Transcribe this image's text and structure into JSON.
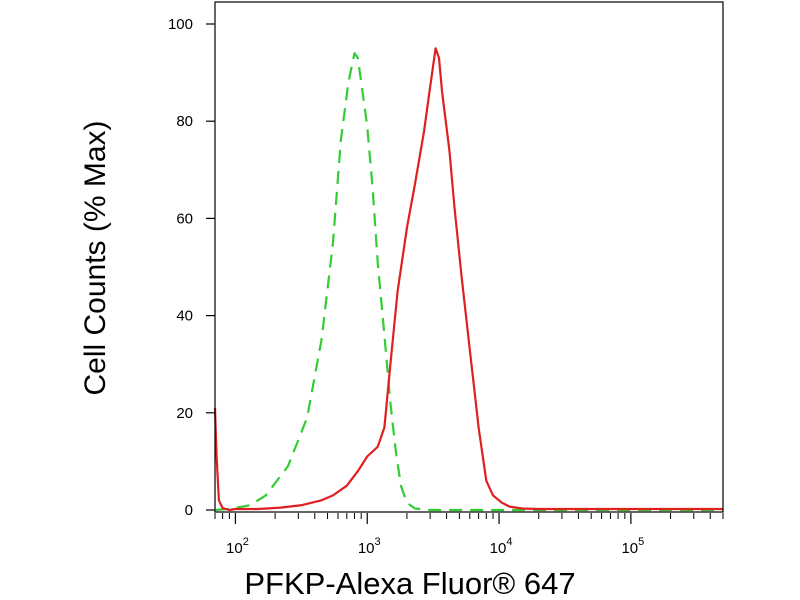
{
  "chart_data": {
    "type": "line",
    "title": "",
    "xlabel": "PFKP-Alexa Fluor® 647",
    "ylabel": "Cell Counts (% Max)",
    "x_scale": "log",
    "xlim": [
      70,
      500000
    ],
    "ylim": [
      0,
      100
    ],
    "grid": false,
    "legend": "none",
    "x_ticks": [
      {
        "value": 100,
        "base": "10",
        "exp": "2"
      },
      {
        "value": 1000,
        "base": "10",
        "exp": "3"
      },
      {
        "value": 10000,
        "base": "10",
        "exp": "4"
      },
      {
        "value": 100000,
        "base": "10",
        "exp": "5"
      }
    ],
    "y_ticks": [
      {
        "value": 0,
        "label": "0"
      },
      {
        "value": 20,
        "label": "20"
      },
      {
        "value": 40,
        "label": "40"
      },
      {
        "value": 60,
        "label": "60"
      },
      {
        "value": 80,
        "label": "80"
      },
      {
        "value": 100,
        "label": "100"
      }
    ],
    "series": [
      {
        "color": "#33cc33",
        "style": "dashed",
        "points": [
          [
            71,
            0
          ],
          [
            95,
            0.3
          ],
          [
            130,
            1
          ],
          [
            170,
            3
          ],
          [
            250,
            9
          ],
          [
            350,
            19
          ],
          [
            450,
            35
          ],
          [
            550,
            55
          ],
          [
            630,
            76
          ],
          [
            720,
            88
          ],
          [
            800,
            94
          ],
          [
            850,
            93
          ],
          [
            900,
            88
          ],
          [
            1000,
            79
          ],
          [
            1100,
            66
          ],
          [
            1200,
            51
          ],
          [
            1350,
            36
          ],
          [
            1500,
            22
          ],
          [
            1650,
            12
          ],
          [
            1800,
            5
          ],
          [
            2000,
            1.5
          ],
          [
            2300,
            0.3
          ],
          [
            3000,
            0
          ],
          [
            10000,
            0
          ],
          [
            500000,
            0
          ]
        ]
      },
      {
        "color": "#e02020",
        "style": "solid",
        "points": [
          [
            70,
            21
          ],
          [
            72,
            11
          ],
          [
            75,
            2
          ],
          [
            80,
            0.4
          ],
          [
            90,
            0
          ],
          [
            100,
            0.2
          ],
          [
            150,
            0.2
          ],
          [
            220,
            0.5
          ],
          [
            320,
            1
          ],
          [
            450,
            2
          ],
          [
            550,
            3
          ],
          [
            700,
            5
          ],
          [
            850,
            8
          ],
          [
            1000,
            11
          ],
          [
            1200,
            13
          ],
          [
            1350,
            17
          ],
          [
            1500,
            30
          ],
          [
            1700,
            45
          ],
          [
            2000,
            58
          ],
          [
            2300,
            67
          ],
          [
            2700,
            78
          ],
          [
            3000,
            87
          ],
          [
            3300,
            95
          ],
          [
            3500,
            93
          ],
          [
            3700,
            86
          ],
          [
            4200,
            74
          ],
          [
            4600,
            62
          ],
          [
            5200,
            48
          ],
          [
            6000,
            33
          ],
          [
            7000,
            17
          ],
          [
            8000,
            6
          ],
          [
            9000,
            3
          ],
          [
            10500,
            1.5
          ],
          [
            12000,
            0.7
          ],
          [
            15000,
            0.3
          ],
          [
            20000,
            0.2
          ],
          [
            50000,
            0.2
          ],
          [
            100000,
            0.2
          ],
          [
            500000,
            0.2
          ]
        ]
      }
    ]
  }
}
